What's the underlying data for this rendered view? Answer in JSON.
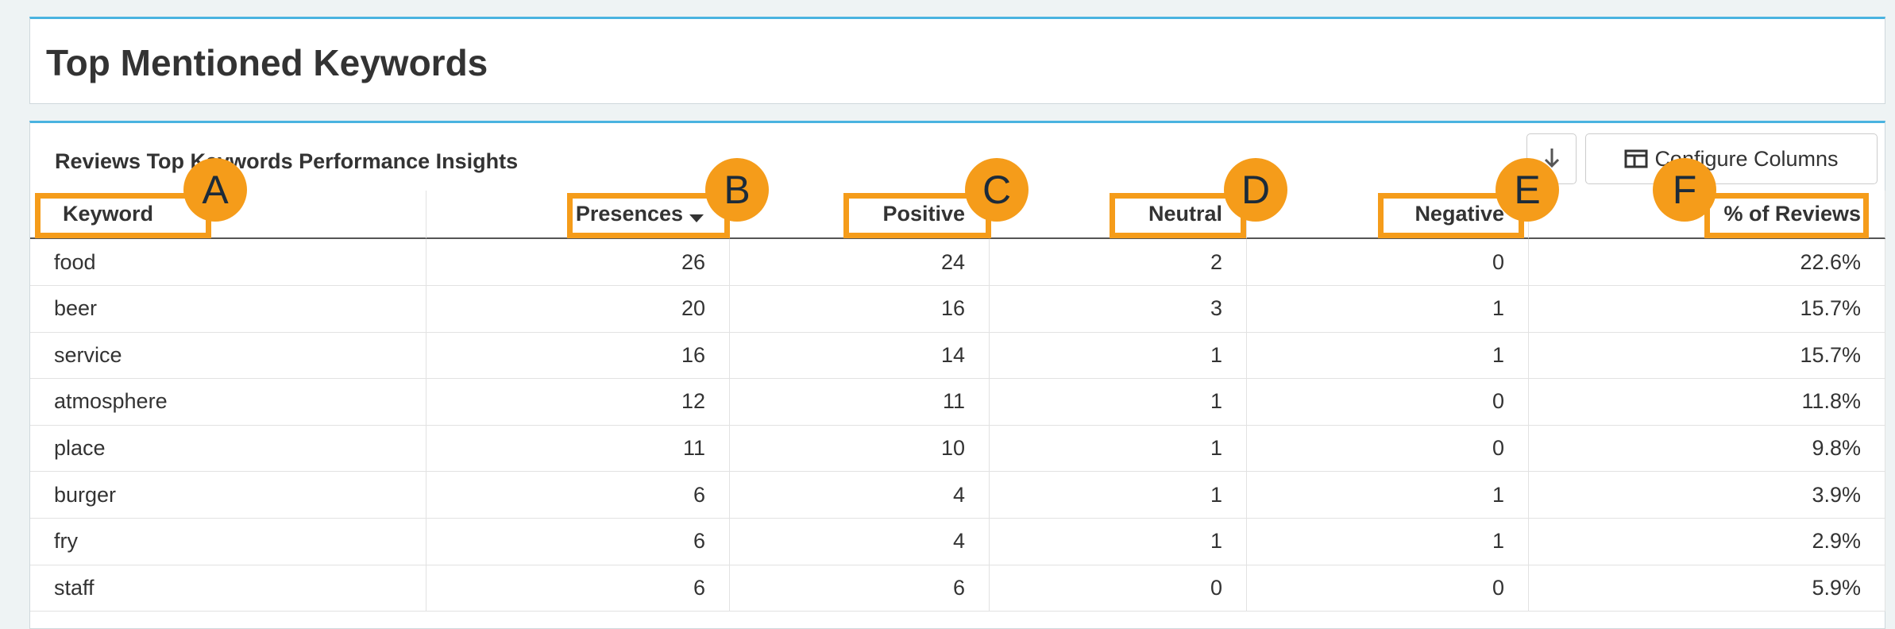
{
  "header": {
    "title": "Top Mentioned Keywords"
  },
  "panel": {
    "subtitle": "Reviews Top Keywords Performance Insights",
    "configure_button": "Configure Columns"
  },
  "table": {
    "columns": [
      "Keyword",
      "Presences",
      "Positive",
      "Neutral",
      "Negative",
      "% of Reviews"
    ],
    "rows": [
      [
        "food",
        26,
        24,
        2,
        0,
        "22.6%"
      ],
      [
        "beer",
        20,
        16,
        3,
        1,
        "15.7%"
      ],
      [
        "service",
        16,
        14,
        1,
        1,
        "15.7%"
      ],
      [
        "atmosphere",
        12,
        11,
        1,
        0,
        "11.8%"
      ],
      [
        "place",
        11,
        10,
        1,
        0,
        "9.8%"
      ],
      [
        "burger",
        6,
        4,
        1,
        1,
        "3.9%"
      ],
      [
        "fry",
        6,
        4,
        1,
        1,
        "2.9%"
      ],
      [
        "staff",
        6,
        6,
        0,
        0,
        "5.9%"
      ]
    ]
  },
  "annotations": [
    "A",
    "B",
    "C",
    "D",
    "E",
    "F"
  ]
}
